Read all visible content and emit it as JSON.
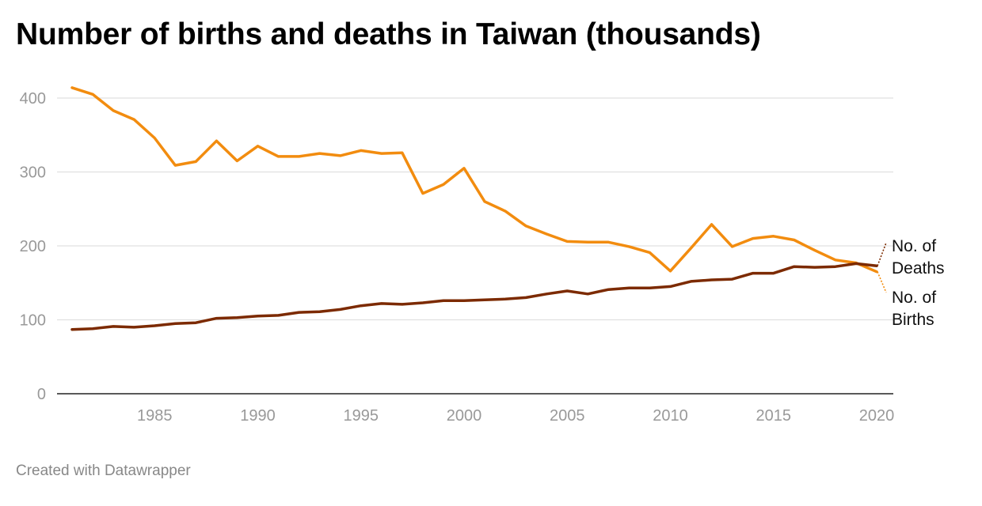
{
  "title": "Number of births and deaths in Taiwan (thousands)",
  "footer": "Created with Datawrapper",
  "colors": {
    "births": "#f28c0f",
    "deaths": "#7c2a00",
    "grid": "#e0e0e0",
    "axis": "#222222",
    "tick_label": "#999999",
    "label": "#111111"
  },
  "chart_data": {
    "type": "line",
    "title": "Number of births and deaths in Taiwan (thousands)",
    "xlabel": "",
    "ylabel": "",
    "xlim": [
      1981,
      2020
    ],
    "ylim": [
      0,
      400
    ],
    "x_ticks": [
      1985,
      1990,
      1995,
      2000,
      2005,
      2010,
      2015,
      2020
    ],
    "y_ticks": [
      0,
      100,
      200,
      300,
      400
    ],
    "grid": true,
    "legend": "direct labels at right end of lines",
    "x": [
      1981,
      1982,
      1983,
      1984,
      1985,
      1986,
      1987,
      1988,
      1989,
      1990,
      1991,
      1992,
      1993,
      1994,
      1995,
      1996,
      1997,
      1998,
      1999,
      2000,
      2001,
      2002,
      2003,
      2004,
      2005,
      2006,
      2007,
      2008,
      2009,
      2010,
      2011,
      2012,
      2013,
      2014,
      2015,
      2016,
      2017,
      2018,
      2019,
      2020
    ],
    "series": [
      {
        "name": "No. of Births",
        "label_lines": [
          "No. of",
          "Births"
        ],
        "color": "#f28c0f",
        "values": [
          414,
          405,
          383,
          371,
          346,
          309,
          314,
          342,
          315,
          335,
          321,
          321,
          325,
          322,
          329,
          325,
          326,
          271,
          283,
          305,
          260,
          247,
          227,
          216,
          206,
          205,
          205,
          199,
          191,
          166,
          197,
          229,
          199,
          210,
          213,
          208,
          194,
          181,
          177,
          165
        ]
      },
      {
        "name": "No. of Deaths",
        "label_lines": [
          "No. of",
          "Deaths"
        ],
        "color": "#7c2a00",
        "values": [
          87,
          88,
          91,
          90,
          92,
          95,
          96,
          102,
          103,
          105,
          106,
          110,
          111,
          114,
          119,
          122,
          121,
          123,
          126,
          126,
          127,
          128,
          130,
          135,
          139,
          135,
          141,
          143,
          143,
          145,
          152,
          154,
          155,
          163,
          163,
          172,
          171,
          172,
          176,
          173
        ]
      }
    ]
  }
}
